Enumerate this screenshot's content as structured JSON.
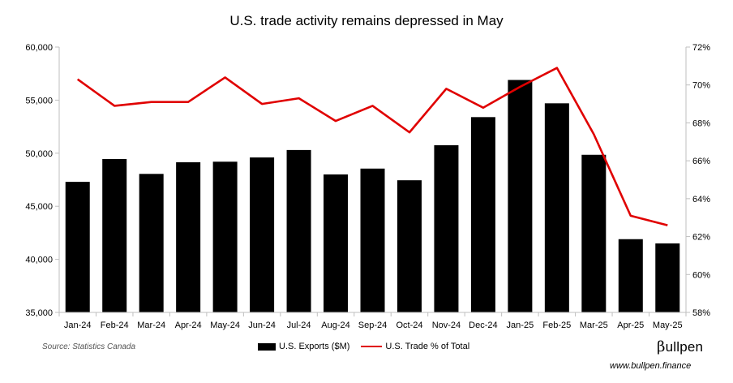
{
  "title": "U.S. trade activity remains depressed in May",
  "source": "Source: Statistics Canada",
  "brand": {
    "mark": "β",
    "name": "ullpen",
    "website": "www.bullpen.finance"
  },
  "colors": {
    "bars": "#000000",
    "line": "#e00000"
  },
  "chart_data": {
    "type": "bar",
    "categories": [
      "Jan-24",
      "Feb-24",
      "Mar-24",
      "Apr-24",
      "May-24",
      "Jun-24",
      "Jul-24",
      "Aug-24",
      "Sep-24",
      "Oct-24",
      "Nov-24",
      "Dec-24",
      "Jan-25",
      "Feb-25",
      "Mar-25",
      "Apr-25",
      "May-25"
    ],
    "series": [
      {
        "name": "U.S. Exports ($M)",
        "kind": "bar",
        "axis": "left",
        "values": [
          47300,
          49450,
          48050,
          49150,
          49200,
          49600,
          50300,
          48000,
          48550,
          47450,
          50750,
          53400,
          56900,
          54700,
          49850,
          41900,
          41500
        ]
      },
      {
        "name": "U.S. Trade % of Total",
        "kind": "line",
        "axis": "right",
        "values": [
          70.3,
          68.9,
          69.1,
          69.1,
          70.4,
          69.0,
          69.3,
          68.1,
          68.9,
          67.5,
          69.8,
          68.8,
          69.9,
          70.9,
          67.4,
          63.1,
          62.6
        ]
      }
    ],
    "left_axis": {
      "ylim": [
        35000,
        60000
      ],
      "tick_labels": [
        "35,000",
        "40,000",
        "45,000",
        "50,000",
        "55,000",
        "60,000"
      ]
    },
    "right_axis": {
      "ylim": [
        58,
        72
      ],
      "tick_labels": [
        "58%",
        "60%",
        "62%",
        "64%",
        "66%",
        "68%",
        "70%",
        "72%"
      ]
    },
    "grid": false,
    "legend_position": "bottom"
  }
}
